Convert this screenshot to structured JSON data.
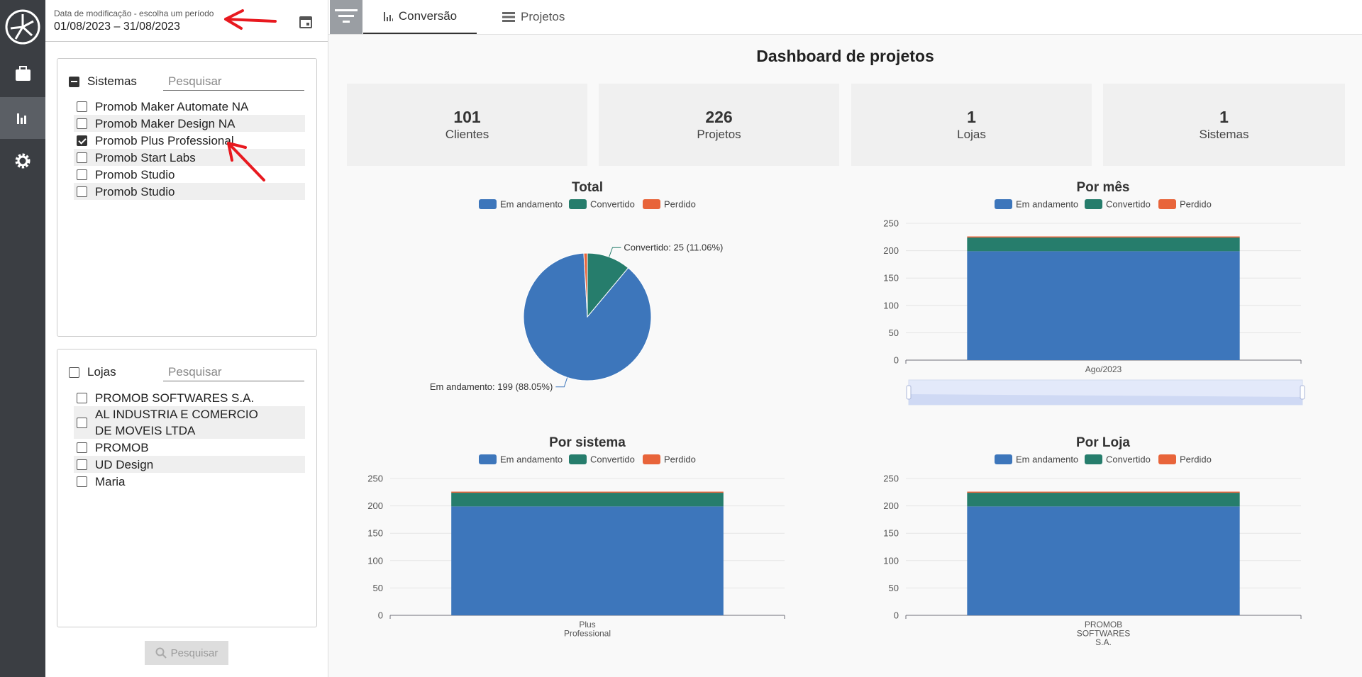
{
  "filter": {
    "date_label": "Data de modificação - escolha um período",
    "date_range": "01/08/2023 – 31/08/2023",
    "systems": {
      "title": "Sistemas",
      "state": "indeterminate",
      "search_placeholder": "Pesquisar",
      "items": [
        {
          "label": "Promob Maker Automate NA",
          "checked": false
        },
        {
          "label": "Promob Maker Design NA",
          "checked": false
        },
        {
          "label": "Promob Plus Professional",
          "checked": true
        },
        {
          "label": "Promob Start Labs",
          "checked": false
        },
        {
          "label": "Promob Studio",
          "checked": false
        },
        {
          "label": "Promob Studio",
          "checked": false
        }
      ]
    },
    "stores": {
      "title": "Lojas",
      "state": "unchecked",
      "search_placeholder": "Pesquisar",
      "items": [
        {
          "label": "PROMOB SOFTWARES S.A.",
          "checked": false
        },
        {
          "label": "AL INDUSTRIA E COMERCIO DE MOVEIS LTDA",
          "checked": false
        },
        {
          "label": "PROMOB",
          "checked": false
        },
        {
          "label": "UD Design",
          "checked": false
        },
        {
          "label": "Maria",
          "checked": false
        }
      ]
    },
    "search_button": "Pesquisar"
  },
  "tabs": [
    "Conversão",
    "Projetos"
  ],
  "dashboard": {
    "title": "Dashboard de projetos",
    "kpis": [
      {
        "value": 101,
        "label": "Clientes"
      },
      {
        "value": 226,
        "label": "Projetos"
      },
      {
        "value": 1,
        "label": "Lojas"
      },
      {
        "value": 1,
        "label": "Sistemas"
      }
    ],
    "charts": [
      {
        "type": "pie",
        "title": "Total",
        "series": [
          {
            "name": "Em andamento",
            "color": "#3d76bb",
            "value": 199,
            "value_label": "Em andamento: 199 (88.05%)"
          },
          {
            "name": "Convertido",
            "color": "#267d6c",
            "value": 25,
            "value_label": "Convertido: 25 (11.06%)"
          },
          {
            "name": "Perdido",
            "color": "#e8643a",
            "value": 2
          }
        ]
      },
      {
        "type": "bar",
        "title": "Por mês",
        "categories": [
          "Ago/2023"
        ],
        "zoom_slider": true,
        "ylim": [
          0,
          250
        ],
        "yticks": [
          0,
          50,
          100,
          150,
          200,
          250
        ],
        "series": [
          {
            "name": "Em andamento",
            "color": "#3d76bb",
            "values": [
              199
            ]
          },
          {
            "name": "Convertido",
            "color": "#267d6c",
            "values": [
              25
            ]
          },
          {
            "name": "Perdido",
            "color": "#e8643a",
            "values": [
              2
            ]
          }
        ]
      },
      {
        "type": "bar",
        "title": "Por sistema",
        "categories": [
          "Plus Professional"
        ],
        "ylim": [
          0,
          250
        ],
        "yticks": [
          0,
          50,
          100,
          150,
          200,
          250
        ],
        "series": [
          {
            "name": "Em andamento",
            "color": "#3d76bb",
            "values": [
              199
            ]
          },
          {
            "name": "Convertido",
            "color": "#267d6c",
            "values": [
              25
            ]
          },
          {
            "name": "Perdido",
            "color": "#e8643a",
            "values": [
              2
            ]
          }
        ]
      },
      {
        "type": "bar",
        "title": "Por Loja",
        "categories": [
          "PROMOB SOFTWARES S.A."
        ],
        "ylim": [
          0,
          250
        ],
        "yticks": [
          0,
          50,
          100,
          150,
          200,
          250
        ],
        "series": [
          {
            "name": "Em andamento",
            "color": "#3d76bb",
            "values": [
              199
            ]
          },
          {
            "name": "Convertido",
            "color": "#267d6c",
            "values": [
              25
            ]
          },
          {
            "name": "Perdido",
            "color": "#e8643a",
            "values": [
              2
            ]
          }
        ]
      }
    ]
  }
}
